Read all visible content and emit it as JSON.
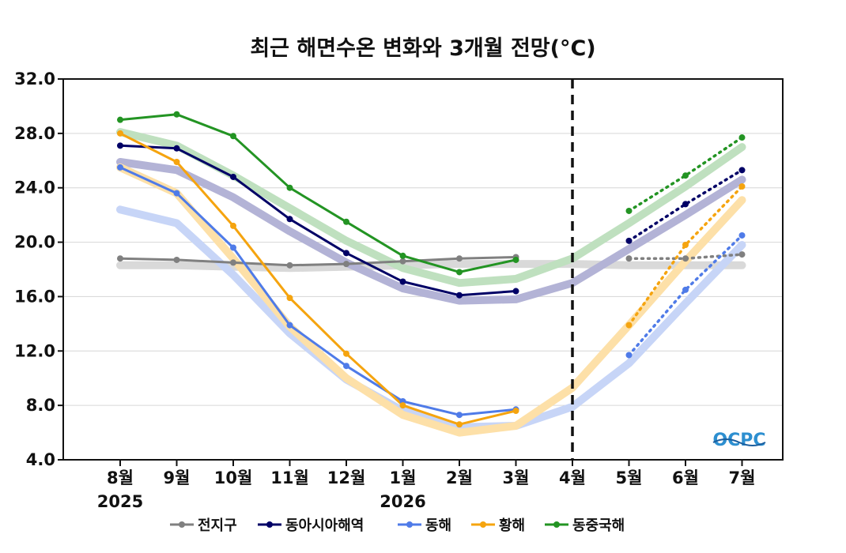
{
  "chart_data": {
    "type": "line",
    "title": "최근 해면수온 변화와 3개월 전망(°C)",
    "categories": [
      "8월",
      "9월",
      "10월",
      "11월",
      "12월",
      "1월",
      "2월",
      "3월",
      "4월",
      "5월",
      "6월",
      "7월"
    ],
    "year_labels": [
      {
        "index": 0,
        "label": "2025"
      },
      {
        "index": 5,
        "label": "2026"
      }
    ],
    "ylim": [
      4.0,
      32.0
    ],
    "yticks": [
      "4.0",
      "8.0",
      "12.0",
      "16.0",
      "20.0",
      "24.0",
      "28.0",
      "32.0"
    ],
    "grid": true,
    "divider_at": "4월",
    "legend_position": "bottom",
    "series": [
      {
        "name": "전지구",
        "color": "#808080",
        "band_color": "#d9d9d9",
        "observed": [
          18.8,
          18.7,
          18.5,
          18.3,
          18.4,
          18.6,
          18.8,
          18.9,
          null,
          null,
          null,
          null
        ],
        "forecast": [
          null,
          null,
          null,
          null,
          null,
          null,
          null,
          null,
          null,
          18.8,
          18.8,
          19.1
        ],
        "climatology": [
          18.3,
          18.3,
          18.2,
          18.1,
          18.2,
          18.3,
          18.4,
          18.4,
          18.4,
          18.3,
          18.3,
          18.3
        ]
      },
      {
        "name": "동아시아해역",
        "color": "#000066",
        "band_color": "#b3b3d6",
        "observed": [
          27.1,
          26.9,
          24.8,
          21.7,
          19.2,
          17.1,
          16.1,
          16.4,
          null,
          null,
          null,
          null
        ],
        "forecast": [
          null,
          null,
          null,
          null,
          null,
          null,
          null,
          null,
          null,
          20.1,
          22.8,
          25.3
        ],
        "climatology": [
          25.9,
          25.3,
          23.3,
          20.8,
          18.5,
          16.6,
          15.7,
          15.8,
          17.0,
          19.5,
          22.0,
          24.6
        ]
      },
      {
        "name": "동해",
        "color": "#4f7be8",
        "band_color": "#c7d5f7",
        "observed": [
          25.5,
          23.6,
          19.6,
          13.9,
          10.9,
          8.3,
          7.3,
          7.7,
          null,
          null,
          null,
          null
        ],
        "forecast": [
          null,
          null,
          null,
          null,
          null,
          null,
          null,
          null,
          null,
          11.7,
          16.5,
          20.5
        ],
        "climatology": [
          22.4,
          21.4,
          17.6,
          13.3,
          9.9,
          7.6,
          6.4,
          6.5,
          7.9,
          11.1,
          15.5,
          19.8
        ]
      },
      {
        "name": "황해",
        "color": "#f5a40f",
        "band_color": "#fde0a8",
        "observed": [
          28.0,
          25.9,
          21.2,
          15.9,
          11.8,
          8.0,
          6.6,
          7.6,
          null,
          null,
          null,
          null
        ],
        "forecast": [
          null,
          null,
          null,
          null,
          null,
          null,
          null,
          null,
          null,
          13.9,
          19.8,
          24.1
        ],
        "climatology": [
          25.5,
          23.6,
          18.8,
          13.8,
          10.0,
          7.3,
          6.0,
          6.5,
          9.3,
          13.9,
          18.6,
          23.1
        ]
      },
      {
        "name": "동중국해",
        "color": "#239423",
        "band_color": "#bfe0bf",
        "observed": [
          29.0,
          29.4,
          27.8,
          24.0,
          21.5,
          19.0,
          17.8,
          18.7,
          null,
          null,
          null,
          null
        ],
        "forecast": [
          null,
          null,
          null,
          null,
          null,
          null,
          null,
          null,
          null,
          22.3,
          24.9,
          27.7
        ],
        "climatology": [
          28.1,
          27.1,
          24.9,
          22.5,
          20.1,
          18.1,
          17.0,
          17.3,
          18.8,
          21.4,
          24.1,
          27.0
        ]
      }
    ]
  },
  "logo": {
    "text": "OCPC"
  }
}
